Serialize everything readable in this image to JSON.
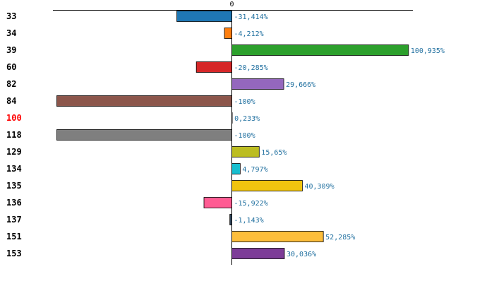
{
  "chart_data": {
    "type": "bar",
    "orientation": "horizontal",
    "categories": [
      "33",
      "34",
      "39",
      "60",
      "82",
      "84",
      "100",
      "118",
      "129",
      "134",
      "135",
      "136",
      "137",
      "151",
      "153"
    ],
    "values": [
      -31.414,
      -4.212,
      100.935,
      -20.285,
      29.666,
      -100,
      0.233,
      -100,
      15.65,
      4.797,
      40.309,
      -15.922,
      -1.143,
      52.285,
      30.036
    ],
    "value_labels": [
      "-31,414%",
      "-4,212%",
      "100,935%",
      "-20,285%",
      "29,666%",
      "-100%",
      "0,233%",
      "-100%",
      "15,65%",
      "4,797%",
      "40,309%",
      "-15,922%",
      "-1,143%",
      "52,285%",
      "30,036%"
    ],
    "colors": [
      "#1f77b4",
      "#ff7f0e",
      "#2ca02c",
      "#d62728",
      "#9467bd",
      "#8c564b",
      "#e377c2",
      "#7f7f7f",
      "#bcbd22",
      "#17becf",
      "#f1c40f",
      "#ff5c93",
      "#34495e",
      "#fdbe3b",
      "#7d3c98"
    ],
    "highlighted_category": "100",
    "highlight_color": "#ff0000",
    "label_color": "#1f6f9f",
    "zero_tick_label": "0",
    "xlim": [
      -100,
      101.6
    ],
    "title": "",
    "xlabel": "",
    "ylabel": ""
  }
}
